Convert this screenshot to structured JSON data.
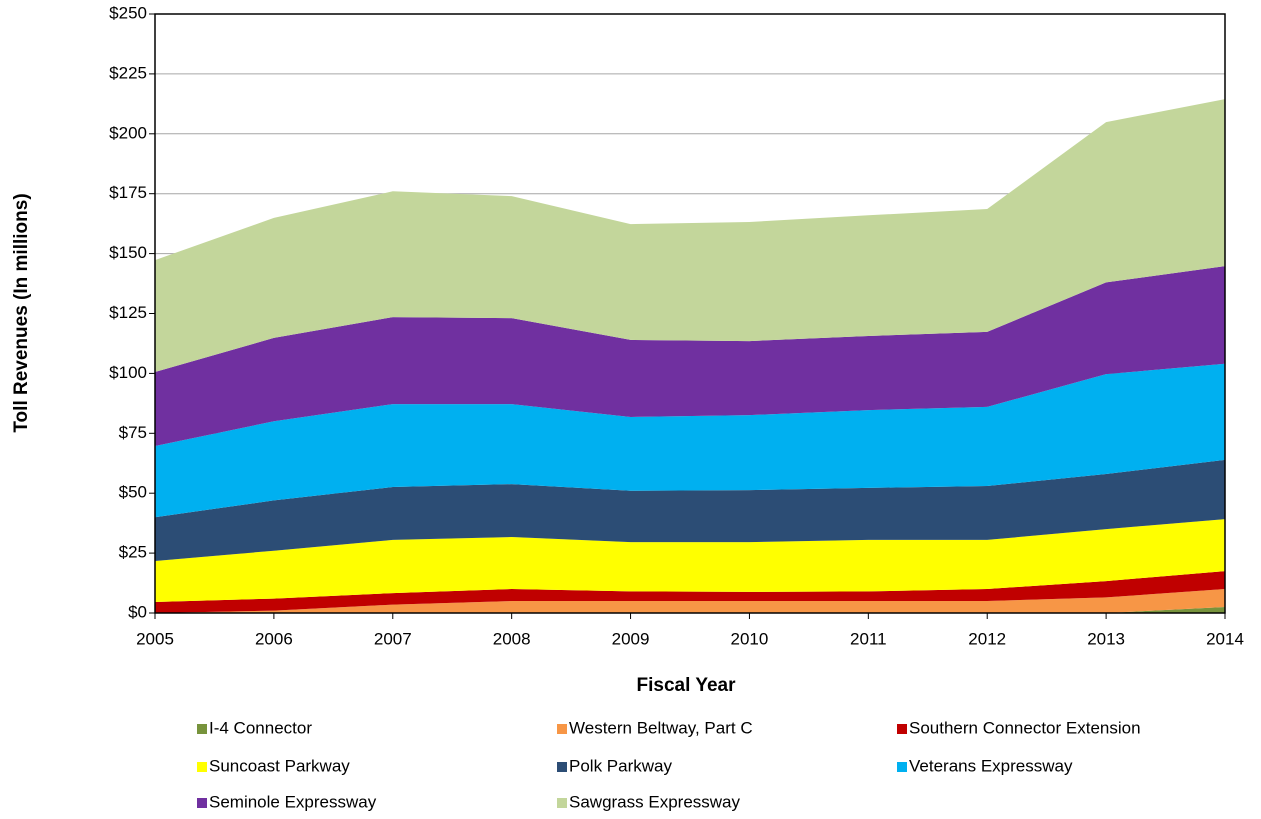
{
  "chart_data": {
    "type": "stacked_area",
    "x_label": "Fiscal Year",
    "y_label": "Toll Revenues (In millions)",
    "x": [
      2005,
      2006,
      2007,
      2008,
      2009,
      2010,
      2011,
      2012,
      2013,
      2014
    ],
    "xlim": [
      2005,
      2014
    ],
    "xticks": [
      2005,
      2006,
      2007,
      2008,
      2009,
      2010,
      2011,
      2012,
      2013,
      2014
    ],
    "ylim": [
      0,
      250
    ],
    "yticks": [
      {
        "value": 0,
        "label": "$0"
      },
      {
        "value": 25,
        "label": "$25"
      },
      {
        "value": 50,
        "label": "$50"
      },
      {
        "value": 75,
        "label": "$75"
      },
      {
        "value": 100,
        "label": "$100"
      },
      {
        "value": 125,
        "label": "$125"
      },
      {
        "value": 150,
        "label": "$150"
      },
      {
        "value": 175,
        "label": "$175"
      },
      {
        "value": 200,
        "label": "$200"
      },
      {
        "value": 225,
        "label": "$225"
      },
      {
        "value": 250,
        "label": "$250"
      }
    ],
    "grid": true,
    "series": [
      {
        "name": "I-4 Connector",
        "color": "#77933c",
        "values": [
          0,
          0,
          0,
          0,
          0,
          0,
          0,
          0,
          0,
          2.5
        ]
      },
      {
        "name": "Western Beltway, Part C",
        "color": "#f79646",
        "values": [
          0,
          1,
          3.5,
          5,
          5,
          5,
          5,
          5,
          6.5,
          7.5
        ]
      },
      {
        "name": "Southern Connector Extension",
        "color": "#c00000",
        "values": [
          4.6,
          5,
          4.8,
          5,
          4,
          3.8,
          4,
          5,
          6.8,
          7.5
        ]
      },
      {
        "name": "Suncoast Parkway",
        "color": "#ffff00",
        "values": [
          17.1,
          20,
          22.2,
          21.7,
          20.6,
          20.8,
          21.5,
          20.5,
          21.7,
          21.7
        ]
      },
      {
        "name": "Polk Parkway",
        "color": "#2c4d75",
        "values": [
          18.3,
          21,
          22.1,
          22.1,
          21.4,
          21.7,
          21.7,
          22.5,
          23,
          24.7
        ]
      },
      {
        "name": "Veterans Expressway",
        "color": "#00b0f0",
        "values": [
          29.7,
          33,
          34.6,
          33.4,
          30.8,
          31.3,
          32.5,
          33,
          41.7,
          40.1
        ]
      },
      {
        "name": "Seminole Expressway",
        "color": "#7030a0",
        "values": [
          30.9,
          34.8,
          36.3,
          35.9,
          32.2,
          30.9,
          30.9,
          31.3,
          38.3,
          40.8
        ]
      },
      {
        "name": "Sawgrass Expressway",
        "color": "#c3d69b",
        "values": [
          46.7,
          50.1,
          52.5,
          50.9,
          48.3,
          49.7,
          50.4,
          51.3,
          66.9,
          69.7
        ]
      }
    ]
  }
}
